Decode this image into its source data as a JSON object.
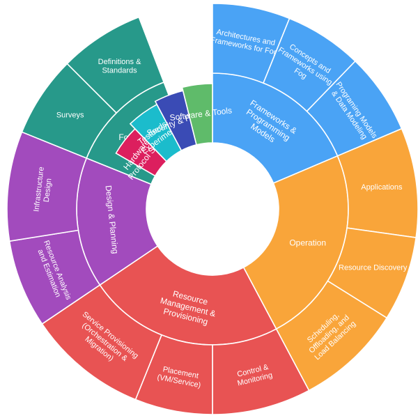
{
  "chart_data": {
    "type": "sunburst",
    "title": "",
    "categories": [
      {
        "name": "Frameworks & Programming Models",
        "lines": [
          "Frameworks &",
          "Programming",
          "Models"
        ],
        "color": "#4aa3f5",
        "children": [
          {
            "name": "Architectures and Frameworks for Fog",
            "lines": [
              "Architectures and",
              "Frameworks for Fog"
            ],
            "value": 1
          },
          {
            "name": "Concepts and Frameworks using Fog",
            "lines": [
              "Concepts and",
              "Frameworks using",
              "Fog"
            ],
            "value": 1
          },
          {
            "name": "Programing Models & Data Modeling",
            "lines": [
              "Programing Models",
              "& Data Modeling"
            ],
            "value": 1
          }
        ]
      },
      {
        "name": "Operation",
        "lines": [
          "Operation"
        ],
        "color": "#f9a53a",
        "children": [
          {
            "name": "Applications",
            "lines": [
              "Applications"
            ],
            "value": 1
          },
          {
            "name": "Resource Discovery",
            "lines": [
              "Resource Discovery"
            ],
            "value": 1
          },
          {
            "name": "Scheduling, Offloading, and Load Balancing",
            "lines": [
              "Scheduling,",
              "Offloading, and",
              "Load Balancing"
            ],
            "value": 1
          }
        ]
      },
      {
        "name": "Resource Management & Provisioning",
        "lines": [
          "Resource",
          "Management &",
          "Provisioning"
        ],
        "color": "#e85353",
        "children": [
          {
            "name": "Control & Monitoring",
            "lines": [
              "Control &",
              "Monitoring"
            ],
            "value": 1
          },
          {
            "name": "Placement (VM/Service)",
            "lines": [
              "Placement",
              "(VM/Service)"
            ],
            "value": 1
          },
          {
            "name": "Service Provisioning (Orchestration & Migration)",
            "lines": [
              "Service Provisioning",
              "(Orchestration &",
              "Migration)"
            ],
            "value": 1
          }
        ]
      },
      {
        "name": "Design & Planning",
        "lines": [
          "Design & Planning"
        ],
        "color": "#a24bbd",
        "children": [
          {
            "name": "Resource Analysis and Estimation",
            "lines": [
              "Resource Analysis",
              "and Estimation"
            ],
            "value": 1
          },
          {
            "name": "Infrastructure Design",
            "lines": [
              "Infrastructure",
              "Design"
            ],
            "value": 1
          }
        ]
      },
      {
        "name": "Foundations",
        "lines": [
          "Foundations"
        ],
        "color": "#27998a",
        "children": [
          {
            "name": "Surveys",
            "lines": [
              "Surveys"
            ],
            "value": 1
          },
          {
            "name": "Definitions & Standards",
            "lines": [
              "Definitions &",
              "Standards"
            ],
            "value": 1
          }
        ]
      },
      {
        "name": "Hardware & Protocol Stack",
        "lines": [
          "Hardware &",
          "Protocol Stack"
        ],
        "color": "#dc1f5e",
        "children": []
      },
      {
        "name": "Testbeds & Experiments",
        "lines": [
          "Testbeds &",
          "Experiments"
        ],
        "color": "#1bbccc",
        "children": []
      },
      {
        "name": "Security & Privacy",
        "lines": [
          "Security & Privacy"
        ],
        "color": "#3a4bb5",
        "children": []
      },
      {
        "name": "Software & Tools",
        "lines": [
          "Software & Tools"
        ],
        "color": "#5fbb6a",
        "children": []
      }
    ],
    "legend": "none",
    "grid": false
  }
}
